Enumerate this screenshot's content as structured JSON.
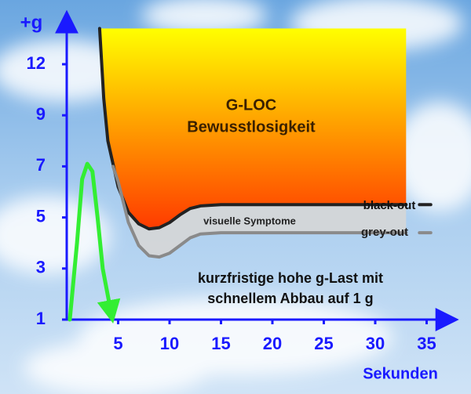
{
  "chart_data": {
    "type": "line",
    "y_label": "+g",
    "x_label": "Sekunden",
    "xlim": [
      0,
      37
    ],
    "xticks": [
      5,
      10,
      15,
      20,
      25,
      30,
      35
    ],
    "ylim": [
      1,
      14.5
    ],
    "yticks": [
      1,
      3,
      5,
      7,
      9,
      12
    ],
    "region_labels": [
      "G-LOC",
      "Bewusstlosigkeit",
      "visuelle Symptome"
    ],
    "annotation": [
      "kurzfristige hohe g-Last mit",
      "schnellem Abbau auf 1 g"
    ],
    "series": [
      {
        "name": "black-out",
        "color": "#222222",
        "x": [
          3.2,
          3.6,
          4,
          5,
          6,
          7,
          8,
          9,
          10,
          11,
          12,
          13,
          15,
          20,
          25,
          30,
          33,
          34,
          34.3,
          35.4
        ],
        "values": [
          14.1,
          10,
          8,
          6.2,
          5.2,
          4.75,
          4.55,
          4.6,
          4.8,
          5.1,
          5.35,
          5.45,
          5.5,
          5.5,
          5.5,
          5.5,
          5.5,
          null,
          5.5,
          5.5
        ]
      },
      {
        "name": "grey-out",
        "color": "#8a8a8a",
        "x": [
          4.5,
          5,
          6,
          7,
          8,
          9,
          10,
          11,
          12,
          13,
          15,
          20,
          25,
          30,
          33,
          34,
          34.3,
          35.4
        ],
        "values": [
          7,
          6.4,
          4.8,
          3.9,
          3.5,
          3.45,
          3.6,
          3.9,
          4.2,
          4.35,
          4.4,
          4.4,
          4.4,
          4.4,
          4.4,
          null,
          4.4,
          4.4
        ]
      },
      {
        "color": "#33ee33",
        "x": [
          0.3,
          1,
          1.5,
          2,
          2.5,
          3,
          3.5,
          4.3
        ],
        "values": [
          1,
          4,
          6.5,
          7.1,
          6.8,
          5,
          3,
          1.3
        ]
      }
    ]
  }
}
